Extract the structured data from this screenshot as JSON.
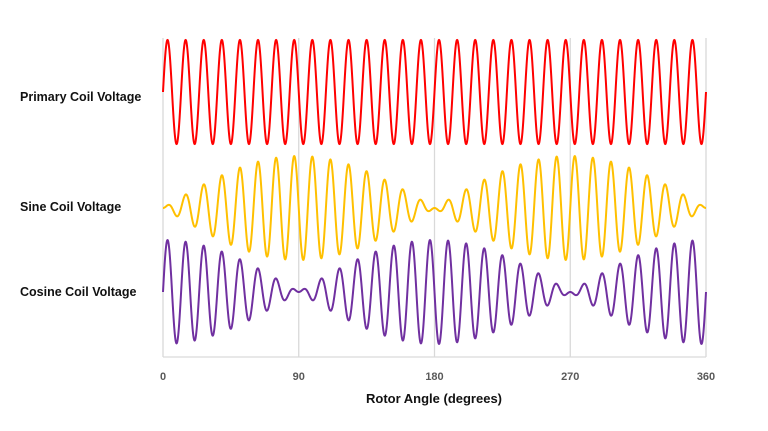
{
  "chart_data": {
    "type": "line",
    "xlabel": "Rotor Angle (degrees)",
    "xlim": [
      0,
      360
    ],
    "xticks": [
      "0",
      "90",
      "180",
      "270",
      "360"
    ],
    "grid": "vertical",
    "series": [
      {
        "name": "Primary Coil Voltage",
        "color": "#ff0000",
        "carrier_cycles": 30,
        "envelope": "constant 1"
      },
      {
        "name": "Sine Coil Voltage",
        "color": "#ffc000",
        "carrier_cycles": 30,
        "envelope": "sin(angle)"
      },
      {
        "name": "Cosine Coil Voltage",
        "color": "#7030a0",
        "carrier_cycles": 30,
        "envelope": "cos(angle)"
      }
    ]
  }
}
